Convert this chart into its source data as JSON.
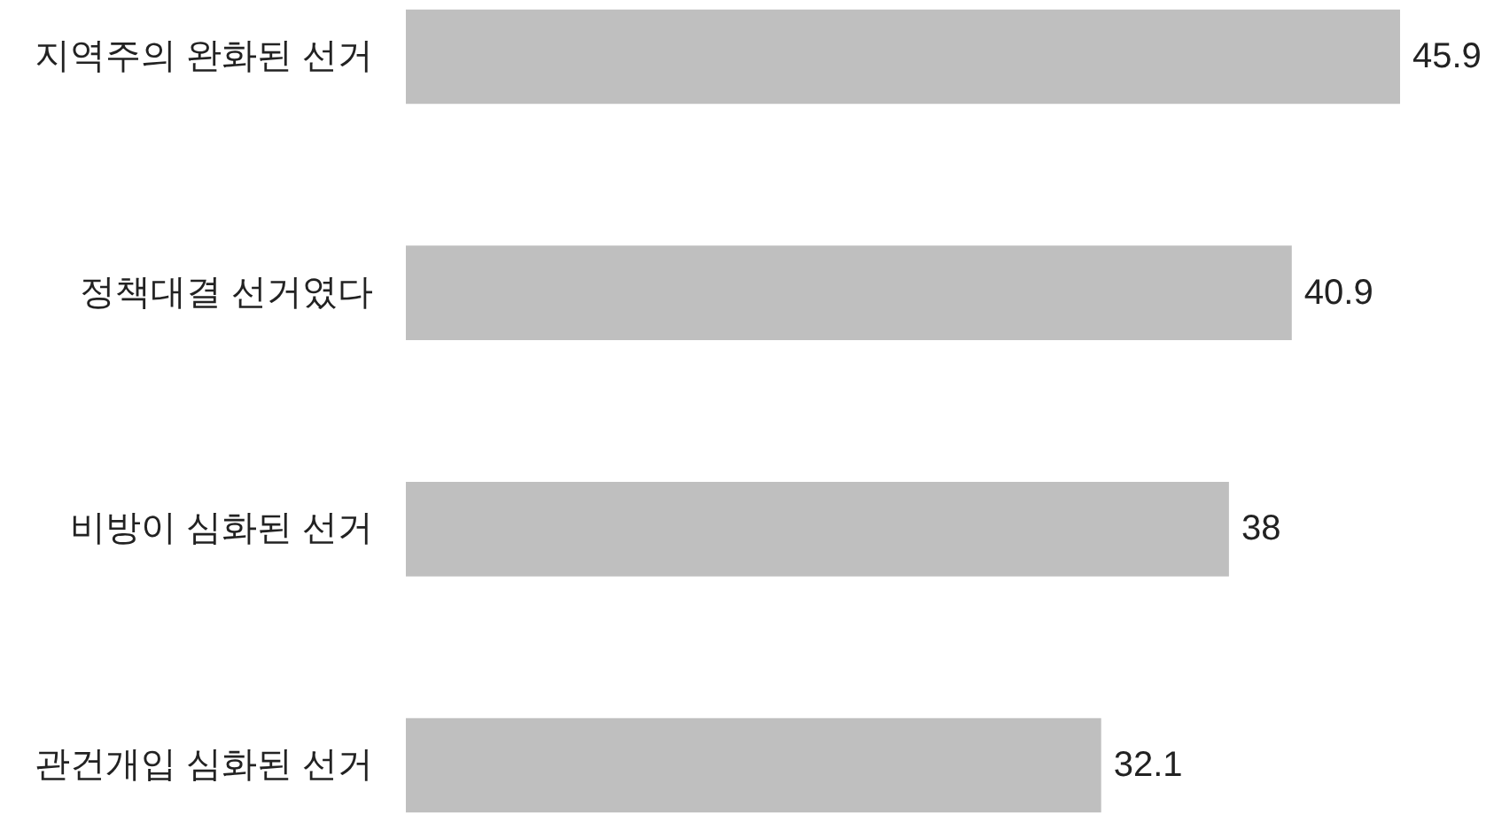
{
  "chart_data": {
    "type": "bar",
    "orientation": "horizontal",
    "categories": [
      "지역주의 완화된 선거",
      "정책대결 선거였다",
      "비방이 심화된 선거",
      "관건개입 심화된 선거"
    ],
    "values": [
      45.9,
      40.9,
      38,
      32.1
    ],
    "color": "#bfbfbf",
    "data_labels": true
  }
}
